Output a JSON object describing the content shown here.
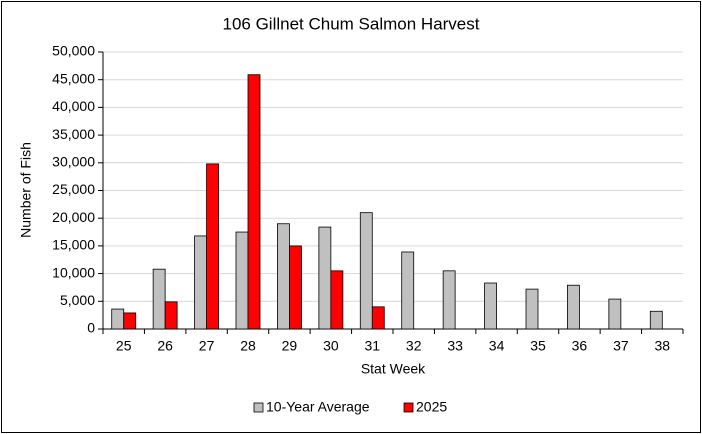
{
  "chart_data": {
    "type": "bar",
    "title": "106 Gillnet Chum Salmon Harvest",
    "x_label": "Stat Week",
    "y_label": "Number of Fish",
    "categories": [
      "25",
      "26",
      "27",
      "28",
      "29",
      "30",
      "31",
      "32",
      "33",
      "34",
      "35",
      "36",
      "37",
      "38"
    ],
    "series": [
      {
        "name": "10-Year Average",
        "color": "#c0c0c0",
        "values": [
          3600,
          10800,
          16800,
          17500,
          19000,
          18400,
          21000,
          13900,
          10500,
          8300,
          7200,
          7900,
          5400,
          3200
        ]
      },
      {
        "name": "2025",
        "color": "#ff0000",
        "values": [
          2900,
          4900,
          29800,
          45900,
          15000,
          10500,
          4000,
          null,
          null,
          null,
          null,
          null,
          null,
          null
        ]
      }
    ],
    "ylim": [
      0,
      50000
    ],
    "yticks": [
      0,
      {
        "value": 5000,
        "label": "5,000"
      },
      {
        "value": 10000,
        "label": "10,000"
      },
      {
        "value": 15000,
        "label": "15,000"
      },
      {
        "value": 20000,
        "label": "20,000"
      },
      {
        "value": 25000,
        "label": "25,000"
      },
      {
        "value": 30000,
        "label": "30,000"
      },
      {
        "value": 35000,
        "label": "35,000"
      },
      {
        "value": 40000,
        "label": "40,000"
      },
      {
        "value": 45000,
        "label": "45,000"
      },
      {
        "value": 50000,
        "label": "50,000"
      }
    ],
    "grid": true,
    "legend": "bottom"
  }
}
